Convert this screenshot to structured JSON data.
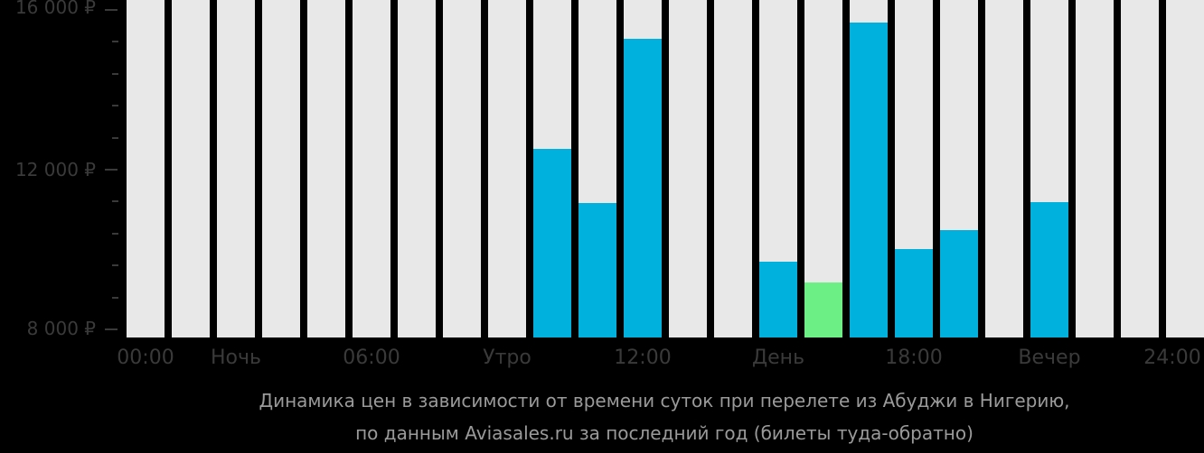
{
  "chart_data": {
    "type": "bar",
    "title": "Динамика цен в зависимости от времени суток при перелете из Абуджи в Нигерию, по данным Aviasales.ru за последний год (билеты туда-обратно)",
    "xlabel": "",
    "ylabel": "",
    "ylim": [
      7800,
      16200
    ],
    "grid": false,
    "categories": [
      "00:00",
      "01:00",
      "02:00",
      "03:00",
      "04:00",
      "05:00",
      "06:00",
      "07:00",
      "08:00",
      "09:00",
      "10:00",
      "11:00",
      "12:00",
      "13:00",
      "14:00",
      "15:00",
      "16:00",
      "17:00",
      "18:00",
      "19:00",
      "20:00",
      "21:00",
      "22:00",
      "23:00"
    ],
    "values": [
      null,
      null,
      null,
      null,
      null,
      null,
      null,
      null,
      null,
      12520,
      11160,
      15280,
      null,
      null,
      9700,
      9180,
      15680,
      10010,
      10490,
      null,
      11190,
      null,
      null,
      null
    ],
    "highlight_min_index": 15,
    "y_ticks": [
      "8 000 ₽",
      "12 000 ₽",
      "16 000 ₽"
    ],
    "x_tick_labels": [
      "00:00",
      "Ночь",
      "06:00",
      "Утро",
      "12:00",
      "День",
      "18:00",
      "Вечер",
      "24:00"
    ],
    "colors": {
      "background_bar": "#e8e8e8",
      "bar": "#00b1dd",
      "min_bar": "#6cf086",
      "page_bg": "#000000"
    }
  },
  "yaxis": {
    "labels": [
      "16 000 ₽",
      "12 000 ₽",
      "8 000 ₽"
    ]
  },
  "xaxis": {
    "labels": [
      "00:00",
      "Ночь",
      "06:00",
      "Утро",
      "12:00",
      "День",
      "18:00",
      "Вечер",
      "24:00"
    ]
  },
  "caption": {
    "line1": "Динамика цен в зависимости от времени суток при перелете из Абуджи в Нигерию,",
    "line2": "по данным Aviasales.ru за последний год (билеты туда-обратно)"
  }
}
